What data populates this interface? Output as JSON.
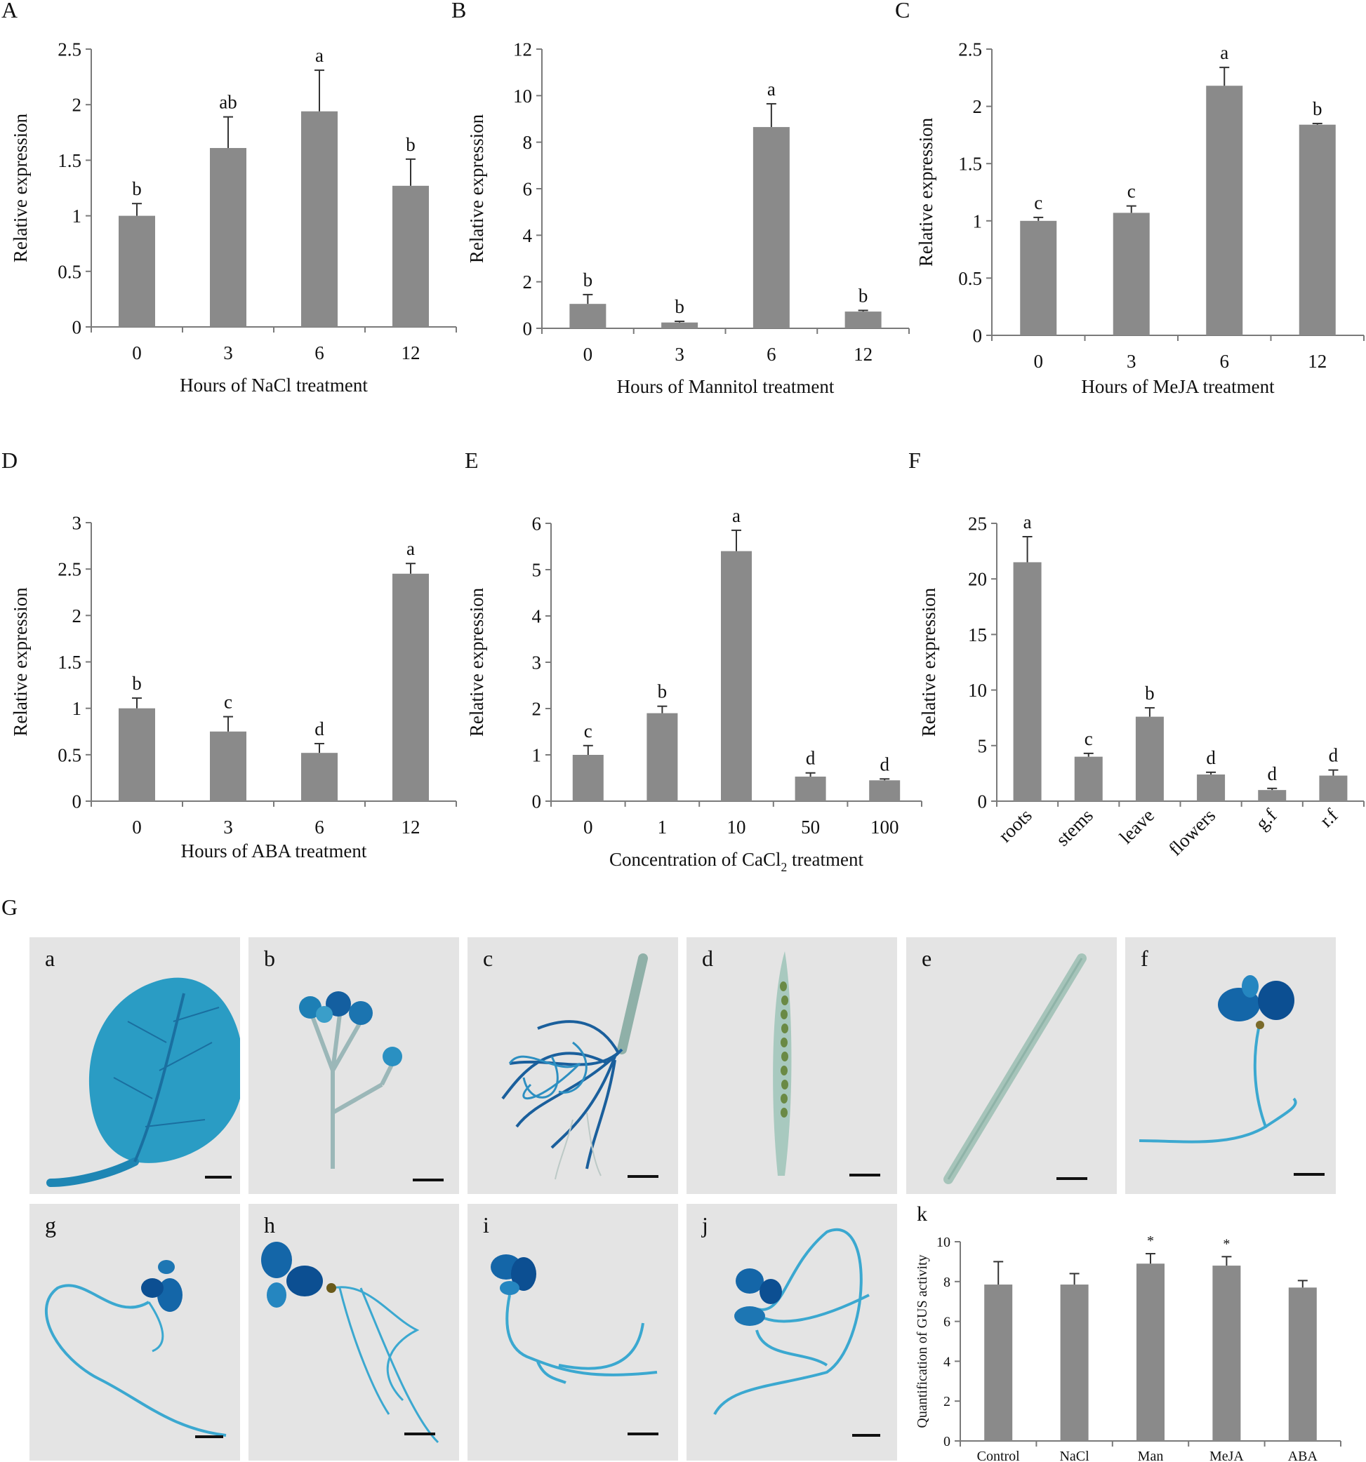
{
  "colors": {
    "bar": "#8a8a8a",
    "axis": "#7a7a7a",
    "stain": "#1e86b4",
    "stain_dark": "#0c4f92",
    "photo_bg": "#e4e4e4"
  },
  "panels": {
    "A": "A",
    "B": "B",
    "C": "C",
    "D": "D",
    "E": "E",
    "F": "F",
    "G": "G"
  },
  "photos": [
    {
      "label": "a",
      "subject": "leaf"
    },
    {
      "label": "b",
      "subject": "inflorescence"
    },
    {
      "label": "c",
      "subject": "roots"
    },
    {
      "label": "d",
      "subject": "silique"
    },
    {
      "label": "e",
      "subject": "stem"
    },
    {
      "label": "f",
      "subject": "seedling"
    },
    {
      "label": "g",
      "subject": "seedling"
    },
    {
      "label": "h",
      "subject": "seedling"
    },
    {
      "label": "i",
      "subject": "seedling"
    },
    {
      "label": "j",
      "subject": "seedling"
    }
  ],
  "chart_data": [
    {
      "panel": "A",
      "type": "bar",
      "xlabel": "Hours of NaCl treatment",
      "ylabel": "Relative expression",
      "categories": [
        "0",
        "3",
        "6",
        "12"
      ],
      "values": [
        1.0,
        1.61,
        1.94,
        1.27
      ],
      "errors": [
        0.11,
        0.28,
        0.37,
        0.24
      ],
      "letters": [
        "b",
        "ab",
        "a",
        "b"
      ],
      "ylim": [
        0,
        2.5
      ],
      "yticks": [
        "0",
        "0.5",
        "1",
        "1.5",
        "2",
        "2.5"
      ]
    },
    {
      "panel": "B",
      "type": "bar",
      "xlabel": "Hours of Mannitol treatment",
      "ylabel": "Relative expression",
      "categories": [
        "0",
        "3",
        "6",
        "12"
      ],
      "values": [
        1.05,
        0.25,
        8.65,
        0.72
      ],
      "errors": [
        0.4,
        0.05,
        1.0,
        0.05
      ],
      "letters": [
        "b",
        "b",
        "a",
        "b"
      ],
      "ylim": [
        0,
        12
      ],
      "yticks": [
        "0",
        "2",
        "4",
        "6",
        "8",
        "10",
        "12"
      ]
    },
    {
      "panel": "C",
      "type": "bar",
      "xlabel": "Hours of MeJA treatment",
      "ylabel": "Relative expression",
      "categories": [
        "0",
        "3",
        "6",
        "12"
      ],
      "values": [
        1.0,
        1.07,
        2.18,
        1.84
      ],
      "errors": [
        0.03,
        0.06,
        0.16,
        0.01
      ],
      "letters": [
        "c",
        "c",
        "a",
        "b"
      ],
      "ylim": [
        0,
        2.5
      ],
      "yticks": [
        "0",
        "0.5",
        "1",
        "1.5",
        "2",
        "2.5"
      ]
    },
    {
      "panel": "D",
      "type": "bar",
      "xlabel": "Hours of ABA treatment",
      "ylabel": "Relative expression",
      "categories": [
        "0",
        "3",
        "6",
        "12"
      ],
      "values": [
        1.0,
        0.75,
        0.52,
        2.45
      ],
      "errors": [
        0.11,
        0.16,
        0.1,
        0.11
      ],
      "letters": [
        "b",
        "c",
        "d",
        "a"
      ],
      "ylim": [
        0,
        3
      ],
      "yticks": [
        "0",
        "0.5",
        "1",
        "1.5",
        "2",
        "2.5",
        "3"
      ]
    },
    {
      "panel": "E",
      "type": "bar",
      "xlabel": "Concentration of CaCl",
      "xlabel_sub": "2",
      "xlabel_tail": " treatment",
      "ylabel": "Relative expression",
      "categories": [
        "0",
        "1",
        "10",
        "50",
        "100"
      ],
      "values": [
        1.0,
        1.9,
        5.4,
        0.53,
        0.45
      ],
      "errors": [
        0.2,
        0.15,
        0.45,
        0.08,
        0.03
      ],
      "letters": [
        "c",
        "b",
        "a",
        "d",
        "d"
      ],
      "ylim": [
        0,
        6
      ],
      "yticks": [
        "0",
        "1",
        "2",
        "3",
        "4",
        "5",
        "6"
      ]
    },
    {
      "panel": "F",
      "type": "bar",
      "xlabel": "",
      "ylabel": "Relative expression",
      "categories": [
        "roots",
        "stems",
        "leave",
        "flowers",
        "g.f",
        "r.f"
      ],
      "values": [
        21.5,
        4.0,
        7.6,
        2.4,
        1.0,
        2.3
      ],
      "errors": [
        2.3,
        0.3,
        0.8,
        0.2,
        0.15,
        0.5
      ],
      "letters": [
        "a",
        "c",
        "b",
        "d",
        "d",
        "d"
      ],
      "ylim": [
        0,
        25
      ],
      "yticks": [
        "0",
        "5",
        "10",
        "15",
        "20",
        "25"
      ],
      "rotated_labels": true
    },
    {
      "panel": "k",
      "type": "bar",
      "xlabel": "",
      "ylabel": "Quantification of GUS activity",
      "categories": [
        "Control",
        "NaCl",
        "Man",
        "MeJA",
        "ABA"
      ],
      "values": [
        7.85,
        7.85,
        8.9,
        8.8,
        7.7
      ],
      "errors": [
        1.15,
        0.55,
        0.5,
        0.45,
        0.35
      ],
      "letters": [
        "",
        "",
        "*",
        "*",
        ""
      ],
      "ylim": [
        0,
        10
      ],
      "yticks": [
        "0",
        "2",
        "4",
        "6",
        "8",
        "10"
      ]
    }
  ]
}
